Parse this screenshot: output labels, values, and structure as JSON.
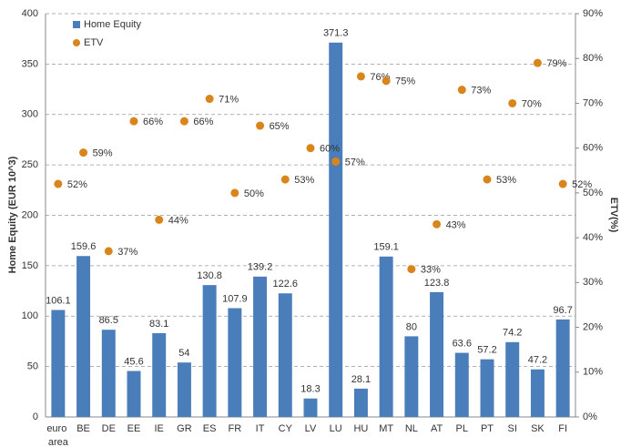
{
  "chart_data": {
    "type": "bar",
    "categories": [
      "euro area",
      "BE",
      "DE",
      "EE",
      "IE",
      "GR",
      "ES",
      "FR",
      "IT",
      "CY",
      "LV",
      "LU",
      "HU",
      "MT",
      "NL",
      "AT",
      "PL",
      "PT",
      "SI",
      "SK",
      "FI"
    ],
    "series": [
      {
        "name": "Home Equity",
        "color": "#4a7ebb",
        "type": "bar",
        "values": [
          106.1,
          159.6,
          86.5,
          45.6,
          83.1,
          54,
          130.8,
          107.9,
          139.2,
          122.6,
          18.3,
          371.3,
          28.1,
          159.1,
          80,
          123.8,
          63.6,
          57.2,
          74.2,
          47.2,
          96.7
        ]
      },
      {
        "name": "ETV",
        "color": "#d9851c",
        "type": "scatter",
        "axis": "y2",
        "values": [
          52,
          59,
          37,
          66,
          44,
          66,
          71,
          50,
          65,
          53,
          60,
          57,
          76,
          75,
          33,
          43,
          73,
          53,
          70,
          79,
          52
        ],
        "value_labels": [
          "52%",
          "59%",
          "37%",
          "66%",
          "44%",
          "66%",
          "71%",
          "50%",
          "65%",
          "53%",
          "60%",
          "57%",
          "76%",
          "75%",
          "33%",
          "43%",
          "73%",
          "53%",
          "70%",
          "79%",
          "52%"
        ]
      }
    ],
    "y_label": "Home Equity    (EUR 10^3)",
    "y2_label": "ETV(%)",
    "ylim": [
      0,
      400
    ],
    "yticks": [
      0,
      50,
      100,
      150,
      200,
      250,
      300,
      350,
      400
    ],
    "y2lim": [
      0,
      90
    ],
    "y2ticks": [
      {
        "value": 0,
        "label": "0%"
      },
      {
        "value": 10,
        "label": "10%"
      },
      {
        "value": 20,
        "label": "20%"
      },
      {
        "value": 30,
        "label": "30%"
      },
      {
        "value": 40,
        "label": "40%"
      },
      {
        "value": 50,
        "label": "50%"
      },
      {
        "value": 60,
        "label": "60%"
      },
      {
        "value": 70,
        "label": "70%"
      },
      {
        "value": 80,
        "label": "80%"
      },
      {
        "value": 90,
        "label": "90%"
      }
    ],
    "grid": true,
    "legend": "top-left"
  }
}
